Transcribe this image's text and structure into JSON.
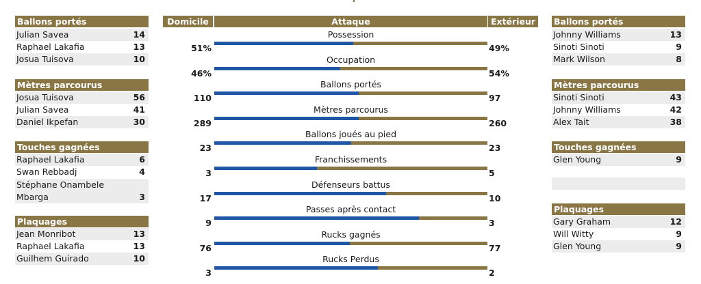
{
  "colors": {
    "header": "#8a7644",
    "home_bar": "#1f56a6",
    "away_bar": "#8a7644",
    "alt_row": "#ececec"
  },
  "center": {
    "home_header": "Domicile",
    "title_header": "Attaque",
    "away_header": "Extérieur",
    "stats": [
      {
        "label": "Possession",
        "home": "51%",
        "away": "49%",
        "home_share": 0.51
      },
      {
        "label": "Occupation",
        "home": "46%",
        "away": "54%",
        "home_share": 0.46
      },
      {
        "label": "Ballons portés",
        "home": "110",
        "away": "97",
        "home_share": 0.53
      },
      {
        "label": "Mètres parcourus",
        "home": "289",
        "away": "260",
        "home_share": 0.53
      },
      {
        "label": "Ballons joués au pied",
        "home": "23",
        "away": "23",
        "home_share": 0.5
      },
      {
        "label": "Franchissements",
        "home": "3",
        "away": "5",
        "home_share": 0.375
      },
      {
        "label": "Défenseurs battus",
        "home": "17",
        "away": "10",
        "home_share": 0.63
      },
      {
        "label": "Passes après contact",
        "home": "9",
        "away": "3",
        "home_share": 0.75
      },
      {
        "label": "Rucks gagnés",
        "home": "76",
        "away": "77",
        "home_share": 0.497
      },
      {
        "label": "Rucks Perdus",
        "home": "3",
        "away": "2",
        "home_share": 0.6
      }
    ]
  },
  "left": {
    "carries": {
      "title": "Ballons portés",
      "rows": [
        {
          "name": "Julian Savea",
          "value": "14"
        },
        {
          "name": "Raphael Lakafia",
          "value": "13"
        },
        {
          "name": "Josua Tuisova",
          "value": "10"
        }
      ]
    },
    "meters": {
      "title": "Mètres parcourus",
      "rows": [
        {
          "name": "Josua Tuisova",
          "value": "56"
        },
        {
          "name": "Julian Savea",
          "value": "41"
        },
        {
          "name": "Daniel Ikpefan",
          "value": "30"
        }
      ]
    },
    "lineouts": {
      "title": "Touches gagnées",
      "rows": [
        {
          "name": "Raphael Lakafia",
          "value": "6"
        },
        {
          "name": "Swan Rebbadj",
          "value": "4"
        },
        {
          "name": "Stéphane Onambele Mbarga",
          "value": "3"
        }
      ]
    },
    "tackles": {
      "title": "Plaquages",
      "rows": [
        {
          "name": "Jean Monribot",
          "value": "13"
        },
        {
          "name": "Raphael Lakafia",
          "value": "13"
        },
        {
          "name": "Guilhem Guirado",
          "value": "10"
        }
      ]
    }
  },
  "right": {
    "carries": {
      "title": "Ballons portés",
      "rows": [
        {
          "name": "Johnny Williams",
          "value": "13"
        },
        {
          "name": "Sinoti Sinoti",
          "value": "9"
        },
        {
          "name": "Mark Wilson",
          "value": "8"
        }
      ]
    },
    "meters": {
      "title": "Mètres parcourus",
      "rows": [
        {
          "name": "Sinoti Sinoti",
          "value": "43"
        },
        {
          "name": "Johnny Williams",
          "value": "42"
        },
        {
          "name": "Alex Tait",
          "value": "38"
        }
      ]
    },
    "lineouts": {
      "title": "Touches gagnées",
      "rows": [
        {
          "name": "Glen Young",
          "value": "9"
        }
      ]
    },
    "tackles": {
      "title": "Plaquages",
      "rows": [
        {
          "name": "Gary Graham",
          "value": "12"
        },
        {
          "name": "Will Witty",
          "value": "9"
        },
        {
          "name": "Glen Young",
          "value": "9"
        }
      ]
    }
  }
}
